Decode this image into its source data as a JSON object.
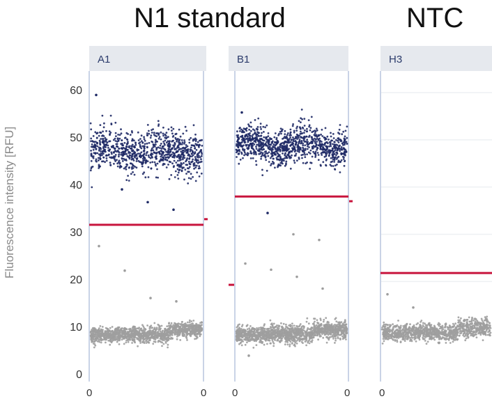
{
  "chart_data": {
    "type": "scatter",
    "group_titles": [
      "N1 standard",
      "NTC"
    ],
    "ylabel": "Fluorescence intensity [RFU]",
    "ylim": [
      0,
      60
    ],
    "yticks": [
      "0",
      "10",
      "20",
      "30",
      "40",
      "50",
      "60"
    ],
    "colors": {
      "positive": "#1f2a66",
      "negative": "#9e9e9e",
      "threshold": "#c8143c",
      "divider": "#c9d3e6",
      "gridline": "#eef0f3"
    },
    "panels": [
      {
        "well": "A1",
        "x_tick_labels": [
          "0",
          "0"
        ],
        "threshold": 32,
        "positive": {
          "mean": 47.5,
          "spread": 2.2,
          "count": 900
        },
        "negative": {
          "mean": 8.7,
          "spread": 0.8,
          "count": 1400
        },
        "outliers": [
          59.5,
          39.5,
          36.8,
          35.2,
          27.5,
          22.3,
          16.5,
          15.8
        ],
        "partial_threshold_next": 33.2
      },
      {
        "well": "B1",
        "x_tick_labels": [
          "0",
          "0"
        ],
        "threshold": 38,
        "positive": {
          "mean": 48.8,
          "spread": 1.9,
          "count": 1000
        },
        "negative": {
          "mean": 8.8,
          "spread": 0.9,
          "count": 1500
        },
        "outliers": [
          55.8,
          34.5,
          30.0,
          28.8,
          23.8,
          22.5,
          21.0,
          18.5,
          4.3
        ],
        "partial_threshold_prev": 19.3,
        "partial_threshold_next": 37.0
      },
      {
        "well": "H3",
        "x_tick_labels": [
          "0"
        ],
        "threshold": 21.8,
        "negative": {
          "mean": 9.2,
          "spread": 0.9,
          "count": 1200
        },
        "outliers": [
          17.3,
          14.5,
          7.0
        ],
        "gridlines": [
          60,
          50,
          40,
          30,
          20,
          10
        ]
      }
    ]
  }
}
